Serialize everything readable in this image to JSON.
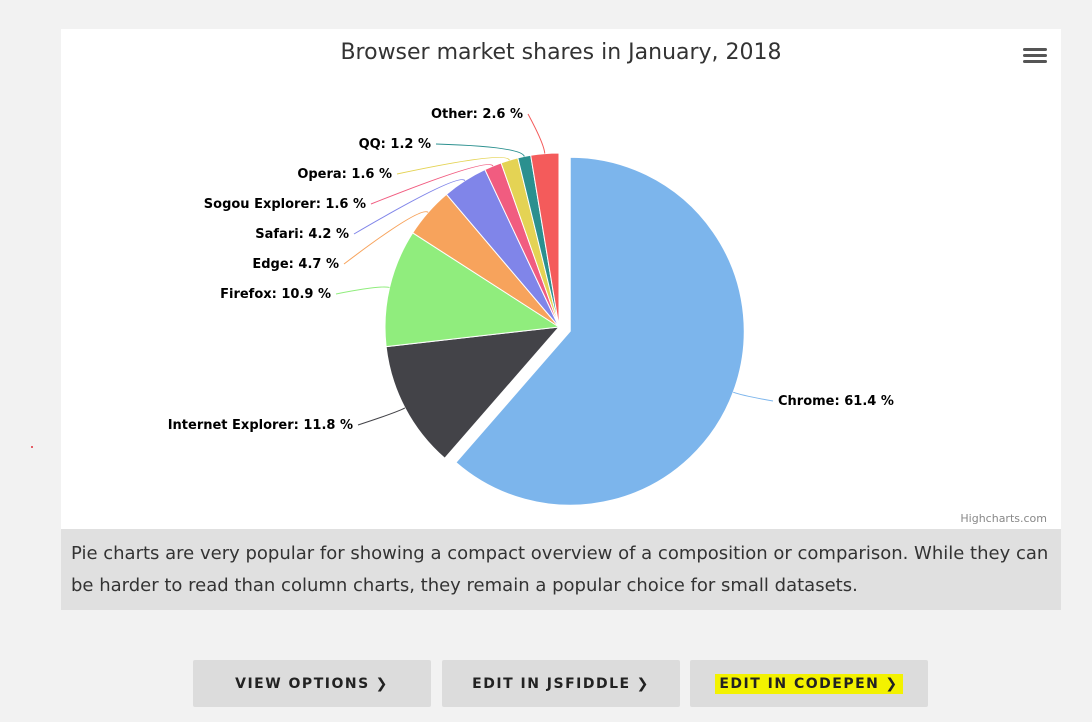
{
  "chart": {
    "credits": "Highcharts.com",
    "menu_icon": "hamburger-menu-icon"
  },
  "chart_data": {
    "type": "pie",
    "title": "Browser market shares in January, 2018",
    "slices": [
      {
        "name": "Chrome",
        "value": 61.4,
        "label": "Chrome: 61.4 %",
        "color": "#7cb5ec",
        "sliced": true
      },
      {
        "name": "Internet Explorer",
        "value": 11.8,
        "label": "Internet Explorer: 11.8 %",
        "color": "#434348"
      },
      {
        "name": "Firefox",
        "value": 10.9,
        "label": "Firefox: 10.9 %",
        "color": "#90ed7d"
      },
      {
        "name": "Edge",
        "value": 4.7,
        "label": "Edge: 4.7 %",
        "color": "#f7a35c"
      },
      {
        "name": "Safari",
        "value": 4.2,
        "label": "Safari: 4.2 %",
        "color": "#8085e9"
      },
      {
        "name": "Sogou Explorer",
        "value": 1.6,
        "label": "Sogou Explorer: 1.6 %",
        "color": "#f15c80"
      },
      {
        "name": "Opera",
        "value": 1.6,
        "label": "Opera: 1.6 %",
        "color": "#e4d354"
      },
      {
        "name": "QQ",
        "value": 1.2,
        "label": "QQ: 1.2 %",
        "color": "#2b908f"
      },
      {
        "name": "Other",
        "value": 2.6,
        "label": "Other: 2.6 %",
        "color": "#f45b5b"
      }
    ]
  },
  "caption": {
    "text": "Pie charts are very popular for showing a compact overview of a composition or comparison. While they can be harder to read than column charts, they remain a popular choice for small datasets."
  },
  "buttons": {
    "view_options": "VIEW OPTIONS",
    "edit_jsfiddle": "EDIT IN JSFIDDLE",
    "edit_codepen": "EDIT IN CODEPEN",
    "chevron_icon": "chevron-right-icon",
    "highlight_color": "#f3f200"
  }
}
